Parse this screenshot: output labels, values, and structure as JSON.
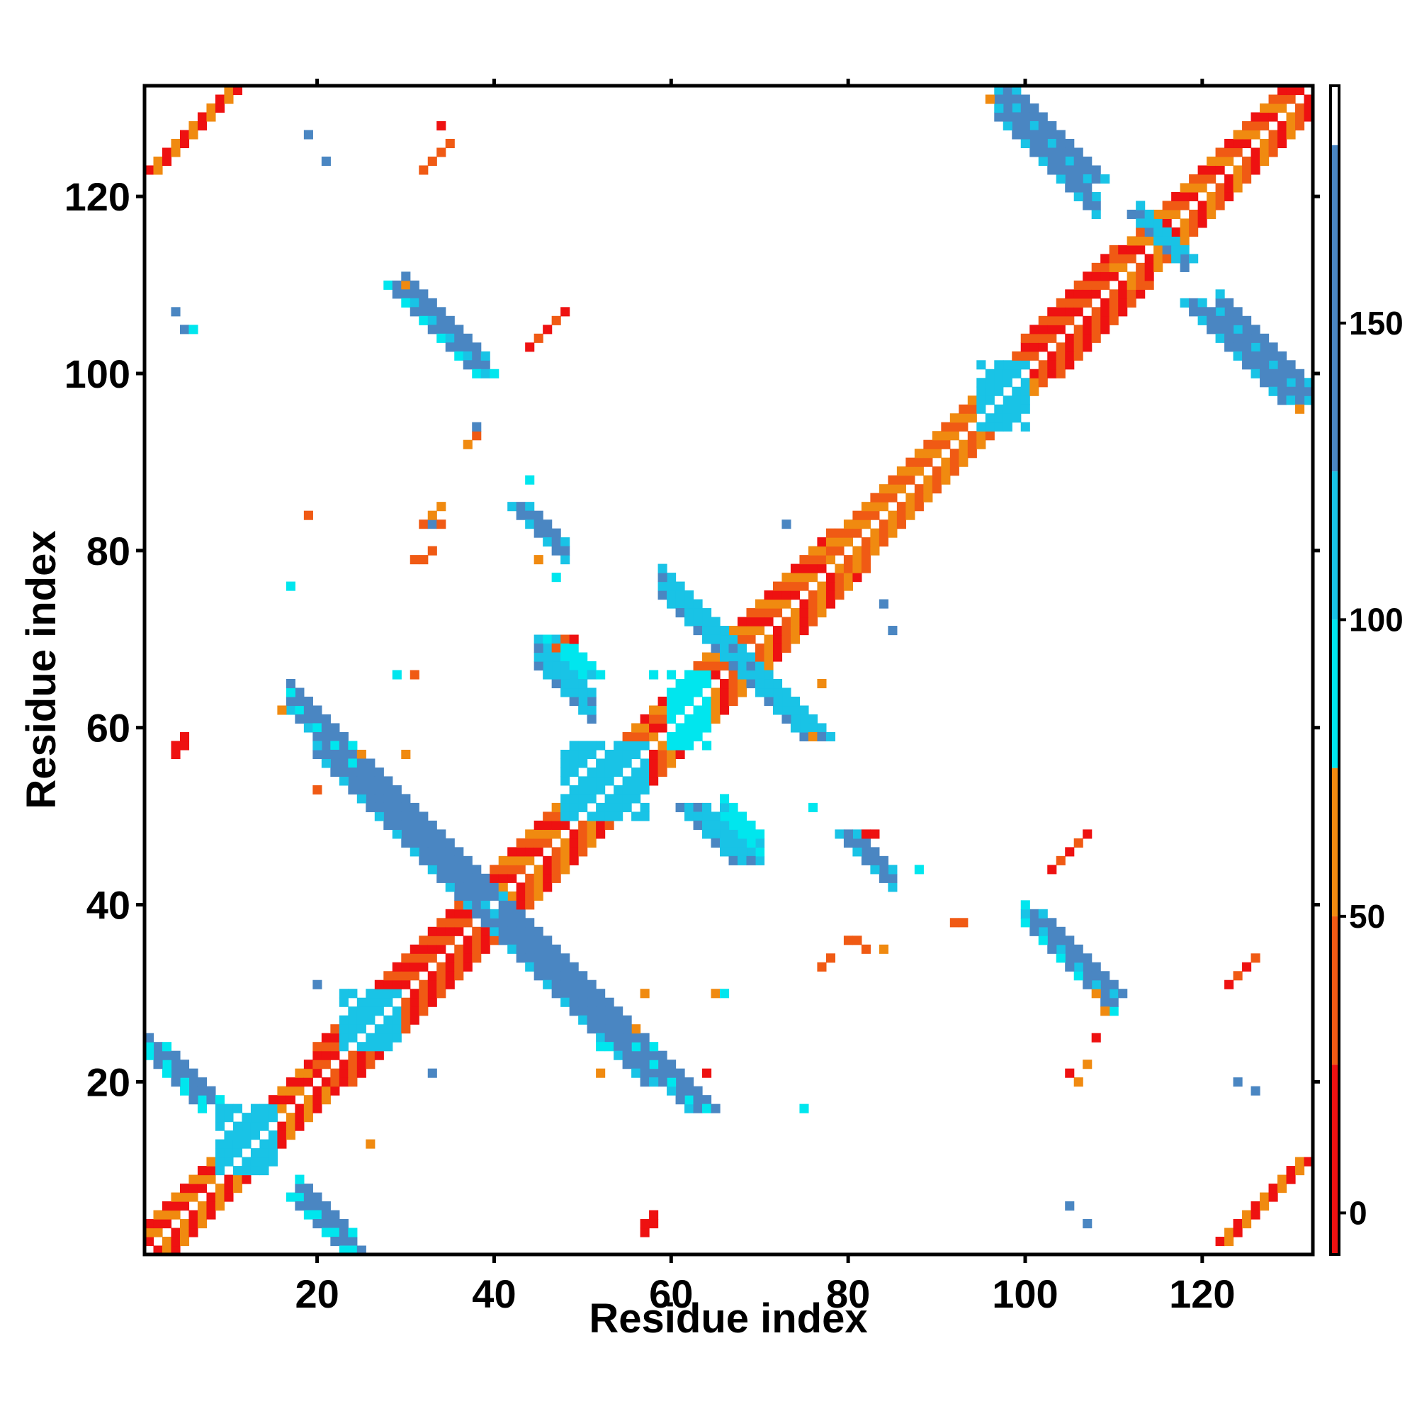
{
  "chart_data": {
    "type": "heatmap",
    "title": "",
    "xlabel": "Residue index",
    "ylabel": "Residue index",
    "xlim": [
      0.5,
      132.5
    ],
    "ylim": [
      0.5,
      132.5
    ],
    "xticks": [
      20,
      40,
      60,
      80,
      100,
      120
    ],
    "yticks": [
      20,
      40,
      60,
      80,
      100,
      120
    ],
    "grid": false,
    "symmetric": true,
    "colorbar": {
      "ticks": [
        0,
        50,
        100,
        150
      ],
      "range": [
        -7,
        190
      ],
      "bands": [
        {
          "from": -7,
          "to": 25,
          "color": "#ee1111"
        },
        {
          "from": 25,
          "to": 50,
          "color": "#f05a14"
        },
        {
          "from": 50,
          "to": 75,
          "color": "#f08a10"
        },
        {
          "from": 75,
          "to": 100,
          "color": "#00e6ee"
        },
        {
          "from": 100,
          "to": 125,
          "color": "#19c3e6"
        },
        {
          "from": 125,
          "to": 180,
          "color": "#4a86c2"
        },
        {
          "from": 180,
          "to": 190,
          "color": "#ffffff"
        }
      ]
    },
    "colors": {
      "red": "#ee1111",
      "red_orange": "#f05a14",
      "orange": "#f08a10",
      "cyan": "#00e6ee",
      "sky": "#19c3e6",
      "steel_blue": "#4a86c2"
    },
    "features": [
      {
        "kind": "diagonal_band",
        "from": 1,
        "to": 20,
        "offsets": [
          1,
          2,
          3
        ],
        "colors": [
          "orange",
          "red"
        ]
      },
      {
        "kind": "diagonal_band",
        "from": 20,
        "to": 38,
        "offsets": [
          1,
          2,
          3,
          4
        ],
        "colors": [
          "red",
          "red_orange"
        ]
      },
      {
        "kind": "diagonal_band",
        "from": 38,
        "to": 58,
        "offsets": [
          1,
          2,
          3,
          4
        ],
        "colors": [
          "red",
          "red_orange",
          "orange"
        ]
      },
      {
        "kind": "diagonal_band",
        "from": 58,
        "to": 78,
        "offsets": [
          1,
          2,
          3,
          4
        ],
        "colors": [
          "red_orange",
          "orange",
          "red"
        ]
      },
      {
        "kind": "diagonal_band",
        "from": 78,
        "to": 100,
        "offsets": [
          1,
          2,
          3
        ],
        "colors": [
          "orange",
          "red_orange"
        ]
      },
      {
        "kind": "diagonal_band",
        "from": 100,
        "to": 110,
        "offsets": [
          1,
          2,
          3,
          4
        ],
        "colors": [
          "red",
          "red_orange"
        ]
      },
      {
        "kind": "diagonal_band",
        "from": 110,
        "to": 132,
        "offsets": [
          1,
          2,
          3
        ],
        "colors": [
          "orange",
          "red_orange",
          "red"
        ]
      },
      {
        "kind": "anti_strip",
        "x0": 17,
        "y0": 62,
        "length": 22,
        "width": 4,
        "color": "steel_blue",
        "edge": "sky"
      },
      {
        "kind": "anti_strip",
        "x0": 38,
        "y0": 39,
        "length": 20,
        "width": 4,
        "color": "steel_blue",
        "edge": "sky"
      },
      {
        "kind": "anti_strip",
        "x0": 56,
        "y0": 24,
        "length": 8,
        "width": 3,
        "color": "steel_blue",
        "edge": "cyan"
      },
      {
        "kind": "anti_strip",
        "x0": 17,
        "y0": 7,
        "length": 8,
        "width": 3,
        "color": "steel_blue",
        "edge": "cyan"
      },
      {
        "kind": "anti_strip",
        "x0": 1,
        "y0": 24,
        "length": 7,
        "width": 3,
        "color": "steel_blue",
        "edge": "cyan"
      },
      {
        "kind": "anti_strip",
        "x0": 28,
        "y0": 110,
        "length": 11,
        "width": 3,
        "color": "steel_blue",
        "edge": "cyan"
      },
      {
        "kind": "anti_strip",
        "x0": 97,
        "y0": 132,
        "length": 11,
        "width": 3,
        "color": "steel_blue",
        "edge": "sky"
      },
      {
        "kind": "anti_strip",
        "x0": 100,
        "y0": 39,
        "length": 10,
        "width": 3,
        "color": "steel_blue",
        "edge": "sky"
      },
      {
        "kind": "anti_strip",
        "x0": 118,
        "y0": 108,
        "length": 12,
        "width": 3,
        "color": "steel_blue",
        "edge": "sky"
      },
      {
        "kind": "anti_strip",
        "x0": 42,
        "y0": 85,
        "length": 5,
        "width": 3,
        "color": "steel_blue",
        "edge": "sky"
      },
      {
        "kind": "anti_strip",
        "x0": 45,
        "y0": 70,
        "length": 5,
        "width": 4,
        "color": "cyan",
        "edge": "sky"
      },
      {
        "kind": "anti_strip",
        "x0": 59,
        "y0": 75,
        "length": 9,
        "width": 4,
        "color": "sky",
        "edge": "steel_blue"
      },
      {
        "kind": "anti_strip",
        "x0": 67,
        "y0": 67,
        "length": 9,
        "width": 4,
        "color": "sky",
        "edge": "steel_blue"
      },
      {
        "kind": "anti_strip",
        "x0": 61,
        "y0": 51,
        "length": 7,
        "width": 4,
        "color": "sky",
        "edge": "steel_blue"
      },
      {
        "kind": "anti_strip",
        "x0": 79,
        "y0": 48,
        "length": 5,
        "width": 3,
        "color": "steel_blue",
        "edge": "sky"
      },
      {
        "kind": "anti_strip",
        "x0": 112,
        "y0": 118,
        "length": 6,
        "width": 3,
        "color": "sky",
        "edge": "steel_blue"
      },
      {
        "kind": "block",
        "x": [
          9,
          15
        ],
        "y": [
          10,
          17
        ],
        "color": "sky"
      },
      {
        "kind": "block",
        "x": [
          23,
          29
        ],
        "y": [
          24,
          30
        ],
        "color": "sky"
      },
      {
        "kind": "block",
        "x": [
          48,
          57
        ],
        "y": [
          50,
          58
        ],
        "color": "sky"
      },
      {
        "kind": "block",
        "x": [
          95,
          100
        ],
        "y": [
          94,
          101
        ],
        "color": "sky"
      },
      {
        "kind": "block",
        "x": [
          60,
          64
        ],
        "y": [
          58,
          66
        ],
        "color": "cyan"
      },
      {
        "kind": "diag_stair",
        "x0": 1,
        "y0": 123,
        "length": 11,
        "width": 2,
        "colors": [
          "red",
          "orange"
        ]
      },
      {
        "kind": "diag_stair",
        "x0": 122,
        "y0": 2,
        "length": 10,
        "width": 2,
        "colors": [
          "red",
          "orange"
        ]
      },
      {
        "kind": "diag_stair",
        "x0": 32,
        "y0": 123,
        "length": 4,
        "width": 1,
        "colors": [
          "red_orange"
        ]
      },
      {
        "kind": "diag_stair",
        "x0": 44,
        "y0": 103,
        "length": 5,
        "width": 1,
        "colors": [
          "red",
          "red_orange"
        ]
      },
      {
        "kind": "diag_stair",
        "x0": 103,
        "y0": 44,
        "length": 5,
        "width": 1,
        "colors": [
          "red",
          "red_orange"
        ]
      },
      {
        "kind": "diag_stair",
        "x0": 123,
        "y0": 31,
        "length": 4,
        "width": 1,
        "colors": [
          "red",
          "red_orange"
        ]
      },
      {
        "kind": "diag_stair",
        "x0": 4,
        "y0": 57,
        "length": 2,
        "width": 1,
        "colors": [
          "red"
        ]
      },
      {
        "kind": "diag_stair",
        "x0": 57,
        "y0": 3,
        "length": 2,
        "width": 1,
        "colors": [
          "red"
        ]
      },
      {
        "kind": "cells",
        "color": "red_orange",
        "points": [
          [
            31,
            79
          ],
          [
            32,
            79
          ],
          [
            33,
            80
          ],
          [
            32,
            83
          ],
          [
            33,
            83
          ],
          [
            34,
            83
          ],
          [
            47,
            69
          ],
          [
            48,
            70
          ],
          [
            77,
            33
          ],
          [
            78,
            34
          ],
          [
            80,
            36
          ],
          [
            81,
            36
          ],
          [
            82,
            35
          ],
          [
            92,
            38
          ],
          [
            93,
            38
          ],
          [
            31,
            66
          ],
          [
            20,
            53
          ],
          [
            19,
            84
          ],
          [
            38,
            93
          ]
        ]
      },
      {
        "kind": "cells",
        "color": "orange",
        "points": [
          [
            34,
            85
          ],
          [
            33,
            84
          ],
          [
            45,
            79
          ],
          [
            30,
            110
          ],
          [
            37,
            92
          ],
          [
            30,
            57
          ],
          [
            84,
            35
          ],
          [
            77,
            65
          ],
          [
            76,
            59
          ],
          [
            57,
            30
          ],
          [
            52,
            21
          ],
          [
            56,
            26
          ],
          [
            108,
            30
          ],
          [
            109,
            28
          ],
          [
            96,
            131
          ],
          [
            131,
            96
          ],
          [
            107,
            22
          ],
          [
            106,
            20
          ],
          [
            25,
            57
          ],
          [
            65,
            30
          ],
          [
            26,
            13
          ],
          [
            16,
            62
          ]
        ]
      },
      {
        "kind": "cells",
        "color": "red",
        "points": [
          [
            49,
            70
          ],
          [
            82,
            48
          ],
          [
            83,
            48
          ],
          [
            57,
            4
          ],
          [
            58,
            5
          ],
          [
            4,
            58
          ],
          [
            5,
            59
          ],
          [
            34,
            128
          ],
          [
            64,
            21
          ],
          [
            105,
            21
          ],
          [
            108,
            25
          ]
        ]
      },
      {
        "kind": "cells",
        "color": "steel_blue",
        "points": [
          [
            4,
            107
          ],
          [
            19,
            127
          ],
          [
            21,
            124
          ],
          [
            20,
            31
          ],
          [
            84,
            74
          ],
          [
            85,
            71
          ],
          [
            73,
            83
          ],
          [
            107,
            4
          ],
          [
            105,
            6
          ],
          [
            124,
            20
          ],
          [
            126,
            19
          ],
          [
            33,
            21
          ],
          [
            5,
            105
          ],
          [
            38,
            94
          ],
          [
            33,
            83
          ]
        ]
      },
      {
        "kind": "cells",
        "color": "cyan",
        "points": [
          [
            6,
            105
          ],
          [
            17,
            76
          ],
          [
            29,
            66
          ],
          [
            44,
            88
          ],
          [
            75,
            17
          ],
          [
            66,
            30
          ],
          [
            88,
            44
          ],
          [
            47,
            77
          ],
          [
            76,
            51
          ],
          [
            58,
            66
          ],
          [
            52,
            24
          ],
          [
            53,
            24
          ]
        ]
      }
    ]
  }
}
